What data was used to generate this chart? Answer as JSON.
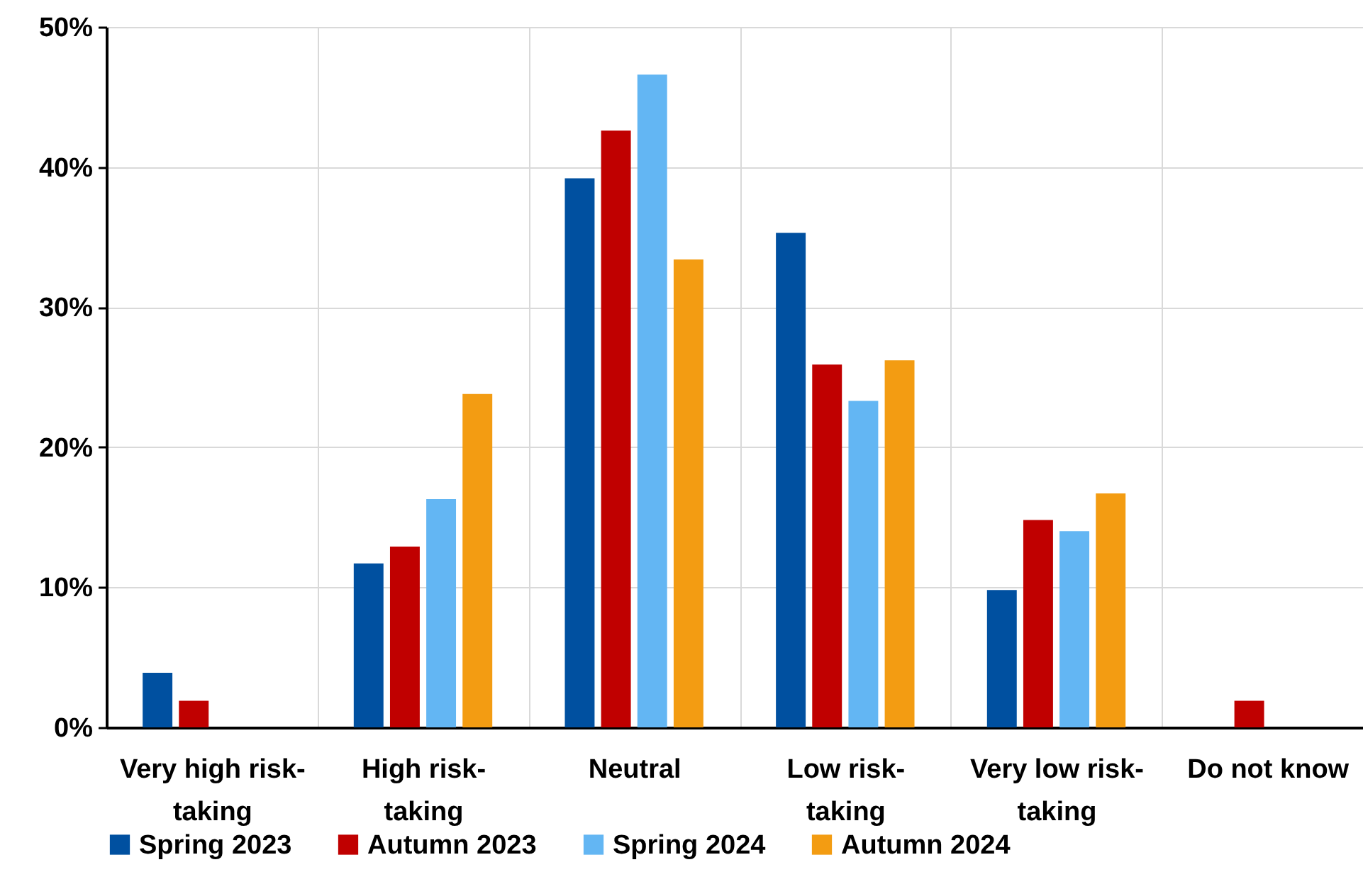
{
  "chart_data": {
    "type": "bar",
    "categories": [
      "Very high risk-taking",
      "High risk-taking",
      "Neutral",
      "Low risk-taking",
      "Very low risk-taking",
      "Do not know"
    ],
    "series": [
      {
        "name": "Spring 2023",
        "color": "#0050a0",
        "values": [
          3.9,
          11.7,
          39.2,
          35.3,
          9.8,
          0
        ]
      },
      {
        "name": "Autumn 2023",
        "color": "#c00000",
        "values": [
          1.9,
          12.9,
          42.6,
          25.9,
          14.8,
          1.9
        ]
      },
      {
        "name": "Spring 2024",
        "color": "#63b6f3",
        "values": [
          0,
          16.3,
          46.6,
          23.3,
          14.0,
          0
        ]
      },
      {
        "name": "Autumn 2024",
        "color": "#f39c12",
        "values": [
          0,
          23.8,
          33.4,
          26.2,
          16.7,
          0
        ]
      }
    ],
    "ylim": [
      0,
      50
    ],
    "yticks": [
      {
        "value": 0,
        "label": "0%"
      },
      {
        "value": 10,
        "label": "10%"
      },
      {
        "value": 20,
        "label": "20%"
      },
      {
        "value": 30,
        "label": "30%"
      },
      {
        "value": 40,
        "label": "40%"
      },
      {
        "value": 50,
        "label": "50%"
      }
    ],
    "grid": true,
    "legend": "bottom"
  }
}
